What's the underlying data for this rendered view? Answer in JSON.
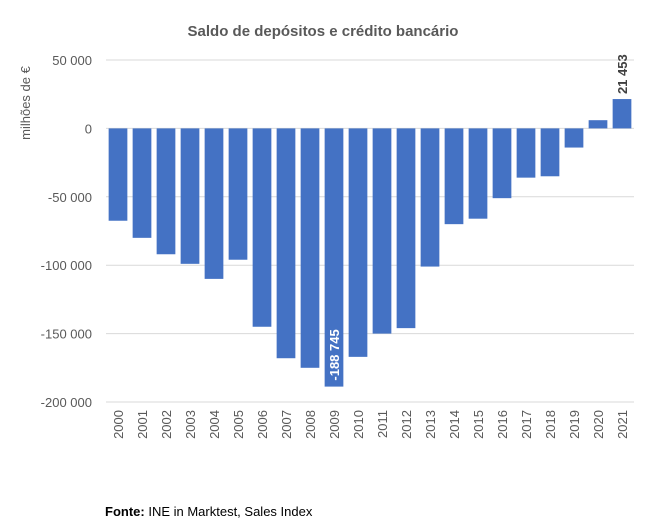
{
  "chart_data": {
    "type": "bar",
    "title": "Saldo de depósitos e crédito bancário",
    "ylabel": "milhões de €",
    "xlabel": "",
    "ylim": [
      -200000,
      50000
    ],
    "yticks": [
      50000,
      0,
      -50000,
      -100000,
      -150000,
      -200000
    ],
    "ytick_labels": [
      "50 000",
      "0",
      "-50 000",
      "-100 000",
      "-150 000",
      "-200 000"
    ],
    "grid": true,
    "bar_color": "#4472C4",
    "categories": [
      "2000",
      "2001",
      "2002",
      "2003",
      "2004",
      "2005",
      "2006",
      "2007",
      "2008",
      "2009",
      "2010",
      "2011",
      "2012",
      "2013",
      "2014",
      "2015",
      "2016",
      "2017",
      "2018",
      "2019",
      "2020",
      "2021"
    ],
    "values": [
      -67500,
      -80000,
      -92000,
      -99000,
      -110000,
      -96000,
      -145000,
      -168000,
      -175000,
      -188745,
      -167000,
      -150000,
      -146000,
      -101000,
      -70000,
      -66000,
      -51000,
      -36000,
      -35000,
      -14000,
      6000,
      21453
    ],
    "data_labels": [
      {
        "category": "2009",
        "text": "-188 745",
        "color": "#ffffff",
        "placement": "inside"
      },
      {
        "category": "2021",
        "text": "21 453",
        "color": "#404040",
        "placement": "above"
      }
    ]
  },
  "source": {
    "label": "Fonte:",
    "text": " INE in Marktest, Sales Index"
  }
}
